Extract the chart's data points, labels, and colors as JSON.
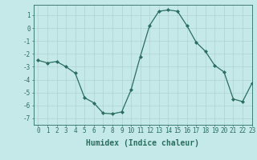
{
  "x": [
    0,
    1,
    2,
    3,
    4,
    5,
    6,
    7,
    8,
    9,
    10,
    11,
    12,
    13,
    14,
    15,
    16,
    17,
    18,
    19,
    20,
    21,
    22,
    23
  ],
  "y": [
    -2.5,
    -2.7,
    -2.6,
    -3.0,
    -3.5,
    -5.4,
    -5.8,
    -6.6,
    -6.65,
    -6.5,
    -4.8,
    -2.2,
    0.2,
    1.3,
    1.4,
    1.3,
    0.2,
    -1.1,
    -1.8,
    -2.9,
    -3.4,
    -5.5,
    -5.7,
    -4.3
  ],
  "line_color": "#2a6e60",
  "marker": "D",
  "marker_size": 2.0,
  "background_color": "#c5e8e8",
  "grid_color": "#aacece",
  "xlabel": "Humidex (Indice chaleur)",
  "xlim": [
    -0.5,
    23
  ],
  "ylim": [
    -7.5,
    1.8
  ],
  "yticks": [
    1,
    0,
    -1,
    -2,
    -3,
    -4,
    -5,
    -6,
    -7
  ],
  "xticks": [
    0,
    1,
    2,
    3,
    4,
    5,
    6,
    7,
    8,
    9,
    10,
    11,
    12,
    13,
    14,
    15,
    16,
    17,
    18,
    19,
    20,
    21,
    22,
    23
  ],
  "tick_color": "#2a6e60",
  "xlabel_fontsize": 7,
  "tick_fontsize": 5.5,
  "linewidth": 0.9
}
